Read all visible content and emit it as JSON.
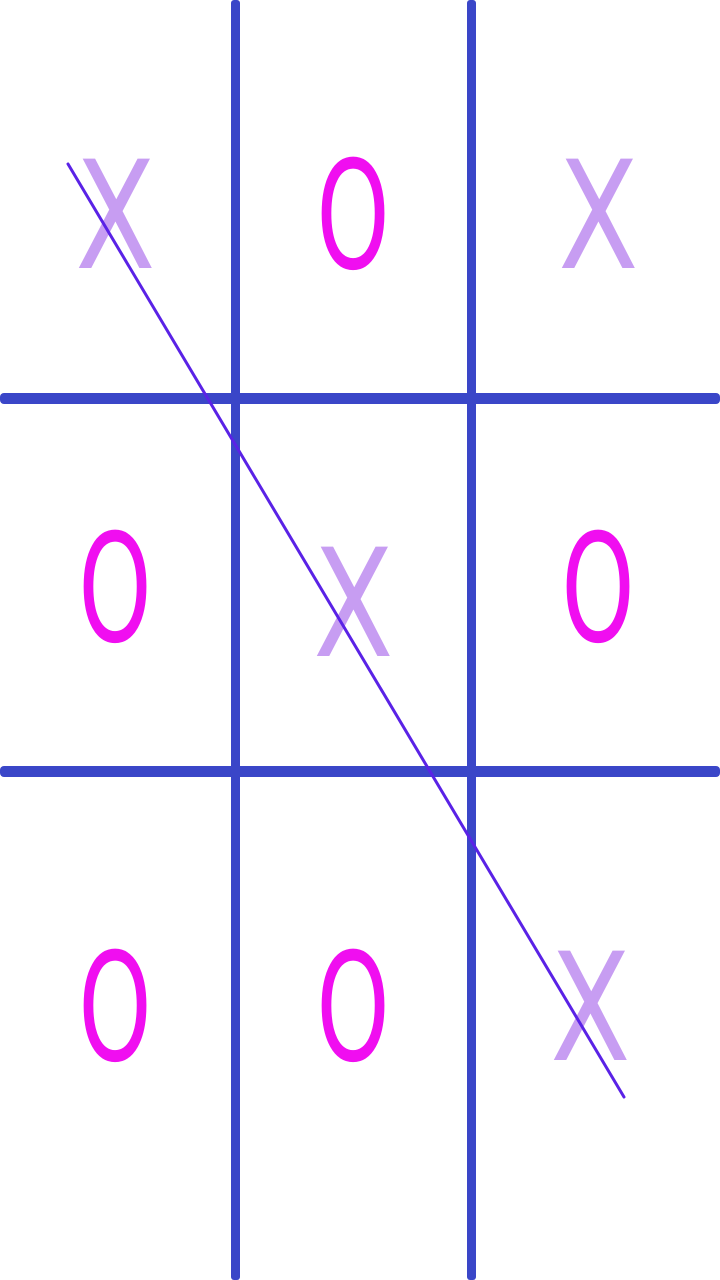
{
  "colors": {
    "grid": "#3a46c8",
    "x_mark": "#c79df2",
    "o_mark": "#f00ef0",
    "win_line": "#5a22e6",
    "background": "#ffffff"
  },
  "board": {
    "rows": [
      [
        "X",
        "O",
        "X"
      ],
      [
        "O",
        "X",
        "O"
      ],
      [
        "O",
        "O",
        "X"
      ]
    ],
    "winning_line": "diagonal-top-left-to-bottom-right",
    "winner": "X"
  }
}
